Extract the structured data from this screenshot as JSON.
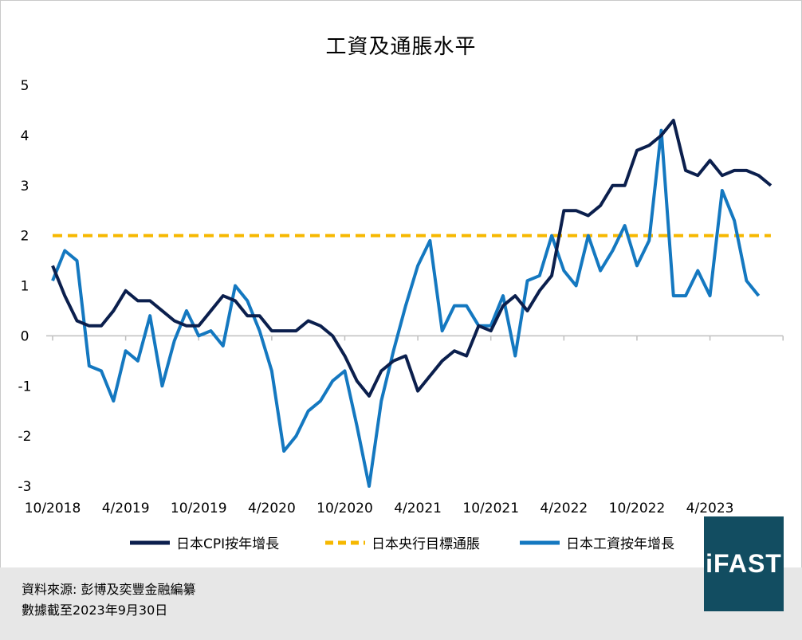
{
  "chart_data": {
    "type": "line",
    "title": "工資及通脹水平",
    "ylim": [
      -3,
      5
    ],
    "yticks": [
      "5",
      "4",
      "3",
      "2",
      "1",
      "0",
      "-1",
      "-2",
      "-3"
    ],
    "xtick_labels": [
      "10/2018",
      "4/2019",
      "10/2019",
      "4/2020",
      "10/2020",
      "4/2021",
      "10/2021",
      "4/2022",
      "10/2022",
      "4/2023"
    ],
    "series": [
      {
        "name": "日本CPI按年增長",
        "color": "#0b1f4d",
        "values": [
          1.4,
          0.8,
          0.3,
          0.2,
          0.2,
          0.5,
          0.9,
          0.7,
          0.7,
          0.5,
          0.3,
          0.2,
          0.2,
          0.5,
          0.8,
          0.7,
          0.4,
          0.4,
          0.1,
          0.1,
          0.1,
          0.3,
          0.2,
          0.0,
          -0.4,
          -0.9,
          -1.2,
          -0.7,
          -0.5,
          -0.4,
          -1.1,
          -0.8,
          -0.5,
          -0.3,
          -0.4,
          0.2,
          0.1,
          0.6,
          0.8,
          0.5,
          0.9,
          1.2,
          2.5,
          2.5,
          2.4,
          2.6,
          3.0,
          3.0,
          3.7,
          3.8,
          4.0,
          4.3,
          3.3,
          3.2,
          3.5,
          3.2,
          3.3,
          3.3,
          3.2,
          3.0
        ]
      },
      {
        "name": "日本央行目標通脹",
        "color": "#f6b800",
        "values": [
          2,
          2
        ]
      },
      {
        "name": "日本工資按年增長",
        "color": "#1478c0",
        "values": [
          1.1,
          1.7,
          1.5,
          -0.6,
          -0.7,
          -1.3,
          -0.3,
          -0.5,
          0.4,
          -1.0,
          -0.1,
          0.5,
          0.0,
          0.1,
          -0.2,
          1.0,
          0.7,
          0.1,
          -0.7,
          -2.3,
          -2.0,
          -1.5,
          -1.3,
          -0.9,
          -0.7,
          -1.8,
          -3.0,
          -1.3,
          -0.3,
          0.6,
          1.4,
          1.9,
          0.1,
          0.6,
          0.6,
          0.2,
          0.2,
          0.8,
          -0.4,
          1.1,
          1.2,
          2.0,
          1.3,
          1.0,
          2.0,
          1.3,
          1.7,
          2.2,
          1.4,
          1.9,
          4.1,
          0.8,
          0.8,
          1.3,
          0.8,
          2.9,
          2.3,
          1.1,
          0.8
        ]
      }
    ]
  },
  "source": {
    "line1": "資料來源: 彭博及奕豐金融編纂",
    "line2": "數據截至2023年9月30日"
  },
  "logo": {
    "text": "iFAST"
  }
}
